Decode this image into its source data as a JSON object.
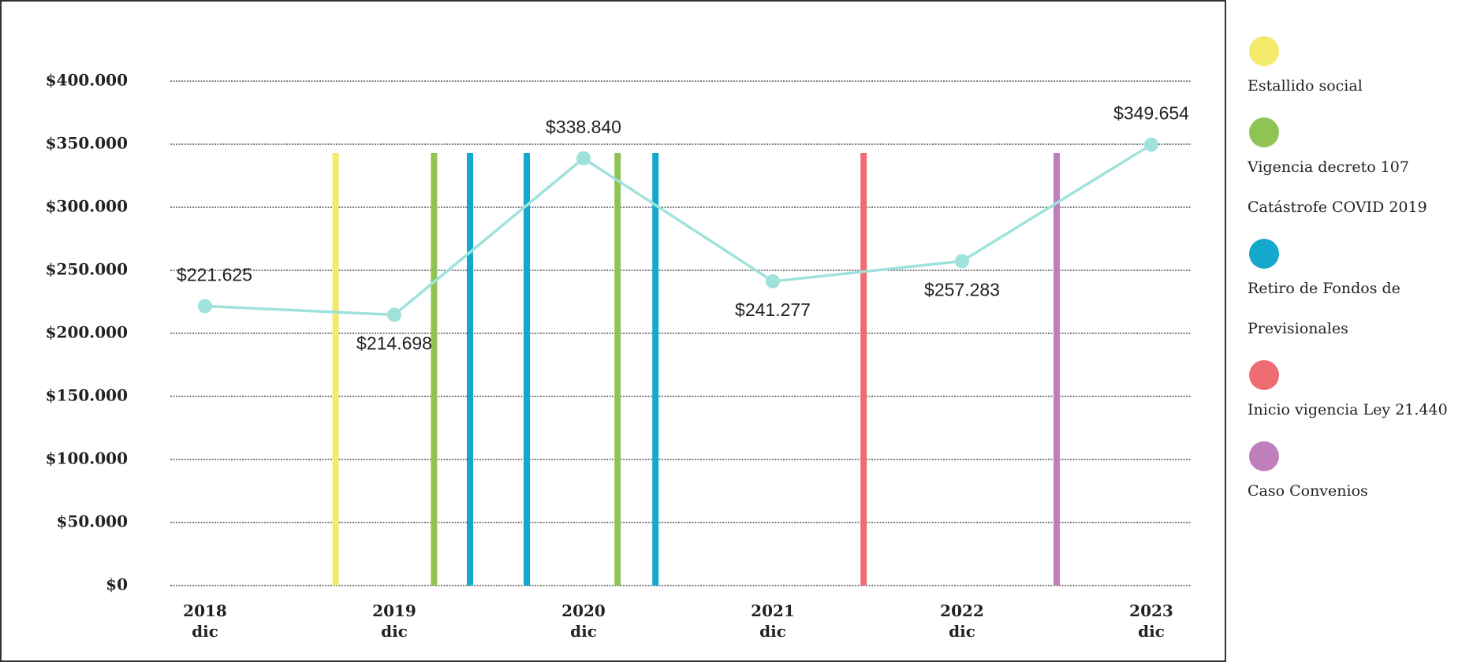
{
  "chart_data": {
    "type": "line",
    "categories": [
      "2018 dic",
      "2019 dic",
      "2020 dic",
      "2021 dic",
      "2022 dic",
      "2023 dic"
    ],
    "values": [
      221625,
      214698,
      338840,
      241277,
      257283,
      349654
    ],
    "value_labels": [
      "$221.625",
      "$214.698",
      "$338.840",
      "$241.277",
      "$257.283",
      "$349.654"
    ],
    "color": "#9fe2dc",
    "ylim": [
      0,
      400000
    ],
    "yticks": [
      {
        "value": 0,
        "label": "$0"
      },
      {
        "value": 50000,
        "label": "$50.000"
      },
      {
        "value": 100000,
        "label": "$100.000"
      },
      {
        "value": 150000,
        "label": "$150.000"
      },
      {
        "value": 200000,
        "label": "$200.000"
      },
      {
        "value": 250000,
        "label": "$250.000"
      },
      {
        "value": 300000,
        "label": "$300.000"
      },
      {
        "value": 350000,
        "label": "$350.000"
      },
      {
        "value": 400000,
        "label": "$400.000"
      }
    ],
    "grid": true,
    "legend": [
      {
        "name": "Estallido social",
        "color": "#f3e96b"
      },
      {
        "name": "Vigencia decreto 107 Catástrofe COVID 2019",
        "color": "#8fc455"
      },
      {
        "name": "Retiro de Fondos de Previsionales",
        "color": "#14a9cc"
      },
      {
        "name": "Inicio vigencia Ley 21.440",
        "color": "#ef6c73"
      },
      {
        "name": "Caso Convenios",
        "color": "#bf7fbc"
      }
    ],
    "events": [
      {
        "x": 0.69,
        "color": "#f3e96b"
      },
      {
        "x": 1.21,
        "color": "#8fc455"
      },
      {
        "x": 1.4,
        "color": "#14a9cc"
      },
      {
        "x": 1.7,
        "color": "#14a9cc"
      },
      {
        "x": 2.18,
        "color": "#8fc455"
      },
      {
        "x": 2.38,
        "color": "#14a9cc"
      },
      {
        "x": 3.48,
        "color": "#ef6c73"
      },
      {
        "x": 4.5,
        "color": "#bf7fbc"
      }
    ]
  }
}
